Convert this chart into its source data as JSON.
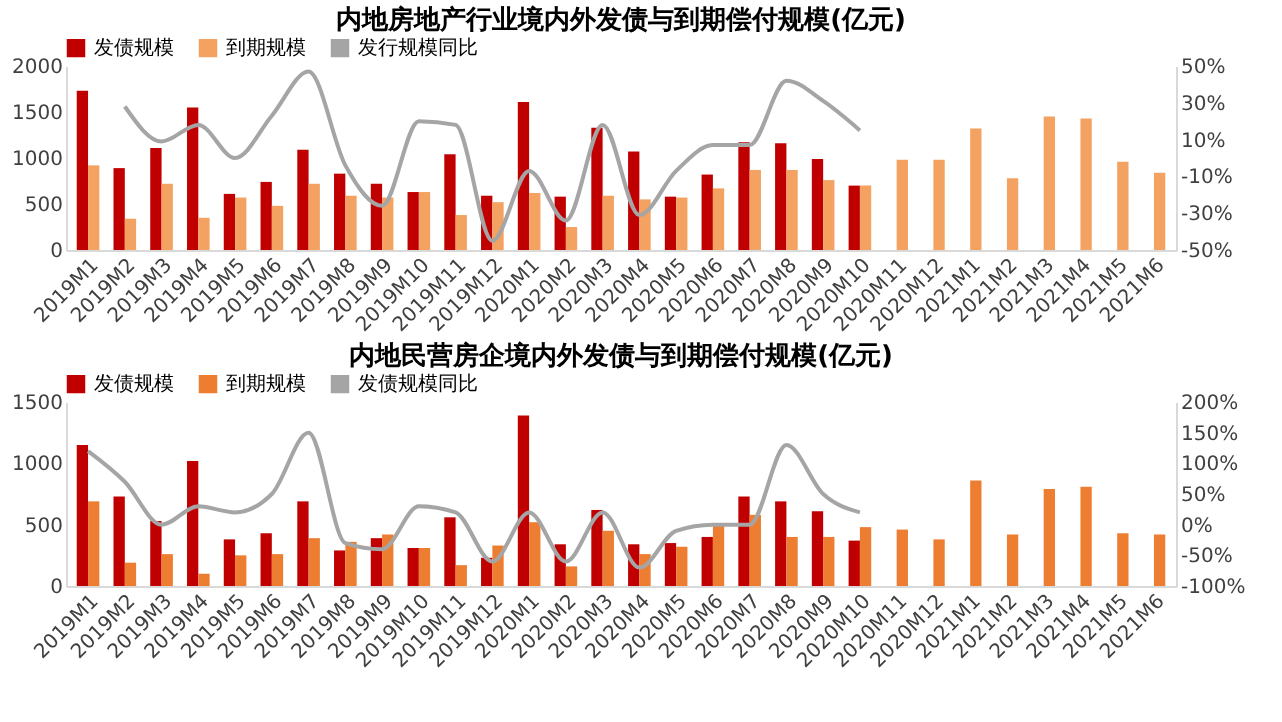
{
  "chart_data": [
    {
      "type": "bar",
      "title": "内地房地产行业境内外发债与到期偿付规模(亿元)",
      "categories": [
        "2019M1",
        "2019M2",
        "2019M3",
        "2019M4",
        "2019M5",
        "2019M6",
        "2019M7",
        "2019M8",
        "2019M9",
        "2019M10",
        "2019M11",
        "2019M12",
        "2020M1",
        "2020M2",
        "2020M3",
        "2020M4",
        "2020M5",
        "2020M6",
        "2020M7",
        "2020M8",
        "2020M9",
        "2020M10",
        "2020M11",
        "2020M12",
        "2021M1",
        "2021M2",
        "2021M3",
        "2021M4",
        "2021M5",
        "2021M6"
      ],
      "series": [
        {
          "name": "发债规模",
          "type": "bar",
          "color": "#c00000",
          "values": [
            1730,
            890,
            1110,
            1550,
            610,
            740,
            1090,
            830,
            720,
            630,
            1040,
            590,
            1610,
            580,
            1330,
            1070,
            580,
            820,
            1170,
            1160,
            990,
            700,
            null,
            null,
            null,
            null,
            null,
            null,
            null,
            null
          ]
        },
        {
          "name": "到期规模",
          "type": "bar",
          "color": "#f4a261",
          "values": [
            920,
            340,
            720,
            350,
            570,
            480,
            720,
            590,
            570,
            630,
            380,
            520,
            620,
            250,
            590,
            550,
            570,
            670,
            870,
            870,
            760,
            700,
            980,
            980,
            1320,
            780,
            1450,
            1430,
            960,
            840
          ]
        },
        {
          "name": "发行规模同比",
          "type": "line",
          "axis": "y2",
          "color": "#a5a5a5",
          "values": [
            null,
            28,
            9,
            18,
            0,
            23,
            47,
            -4,
            -26,
            20,
            18,
            -45,
            -7,
            -34,
            18,
            -31,
            -7,
            7,
            7,
            42,
            31,
            15,
            null,
            null,
            null,
            null,
            null,
            null,
            null,
            null
          ]
        }
      ],
      "ylim": [
        0,
        2000
      ],
      "yticks": [
        0,
        500,
        1000,
        1500,
        2000
      ],
      "y2lim": [
        -50,
        50
      ],
      "y2ticks": [
        {
          "value": 50,
          "label": "50%"
        },
        {
          "value": 30,
          "label": "30%"
        },
        {
          "value": 10,
          "label": "10%"
        },
        {
          "value": -10,
          "label": "-10%"
        },
        {
          "value": -30,
          "label": "-30%"
        },
        {
          "value": -50,
          "label": "-50%"
        }
      ],
      "legend": "top"
    },
    {
      "type": "bar",
      "title": "内地民营房企境内外发债与到期偿付规模(亿元)",
      "categories": [
        "2019M1",
        "2019M2",
        "2019M3",
        "2019M4",
        "2019M5",
        "2019M6",
        "2019M7",
        "2019M8",
        "2019M9",
        "2019M10",
        "2019M11",
        "2019M12",
        "2020M1",
        "2020M2",
        "2020M3",
        "2020M4",
        "2020M5",
        "2020M6",
        "2020M7",
        "2020M8",
        "2020M9",
        "2020M10",
        "2020M11",
        "2020M12",
        "2021M1",
        "2021M2",
        "2021M3",
        "2021M4",
        "2021M5",
        "2021M6"
      ],
      "series": [
        {
          "name": "发债规模",
          "type": "bar",
          "color": "#c00000",
          "values": [
            1150,
            730,
            530,
            1020,
            380,
            430,
            690,
            290,
            390,
            310,
            560,
            230,
            1390,
            340,
            620,
            340,
            350,
            400,
            730,
            690,
            610,
            370,
            null,
            null,
            null,
            null,
            null,
            null,
            null,
            null
          ]
        },
        {
          "name": "到期规模",
          "type": "bar",
          "color": "#ed7d31",
          "values": [
            690,
            190,
            260,
            100,
            250,
            260,
            390,
            360,
            420,
            310,
            170,
            330,
            520,
            160,
            450,
            260,
            320,
            490,
            580,
            400,
            400,
            480,
            460,
            380,
            860,
            420,
            790,
            810,
            430,
            420
          ]
        },
        {
          "name": "发债规模同比",
          "type": "line",
          "axis": "y2",
          "color": "#a5a5a5",
          "values": [
            120,
            70,
            0,
            30,
            20,
            50,
            150,
            -30,
            -40,
            30,
            20,
            -60,
            20,
            -60,
            20,
            -70,
            -10,
            0,
            0,
            130,
            50,
            20,
            null,
            null,
            null,
            null,
            null,
            null,
            null,
            null
          ]
        }
      ],
      "ylim": [
        0,
        1500
      ],
      "yticks": [
        0,
        500,
        1000,
        1500
      ],
      "y2lim": [
        -100,
        200
      ],
      "y2ticks": [
        {
          "value": 200,
          "label": "200%"
        },
        {
          "value": 150,
          "label": "150%"
        },
        {
          "value": 100,
          "label": "100%"
        },
        {
          "value": 50,
          "label": "50%"
        },
        {
          "value": 0,
          "label": "0%"
        },
        {
          "value": -50,
          "label": "-50%"
        },
        {
          "value": -100,
          "label": "-100%"
        }
      ],
      "legend": "top"
    }
  ]
}
